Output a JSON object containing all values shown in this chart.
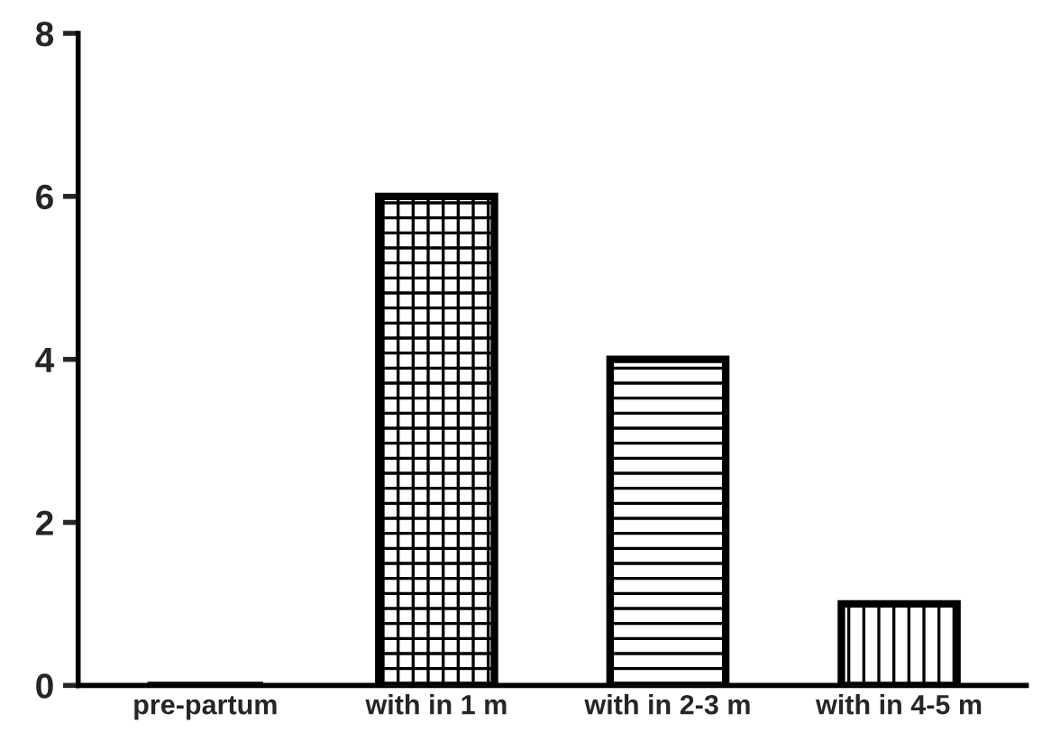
{
  "chart_data": {
    "type": "bar",
    "categories": [
      "pre-partum",
      "with in 1 m",
      "with in 2-3 m",
      "with in 4-5 m"
    ],
    "values": [
      0,
      6,
      4,
      1
    ],
    "colors": [
      "#000000",
      "#000000",
      "#000000",
      "#000000"
    ],
    "ylim": [
      0,
      8
    ],
    "yticks": [
      0,
      2,
      4,
      6,
      8
    ],
    "grid": false,
    "legend": false
  }
}
